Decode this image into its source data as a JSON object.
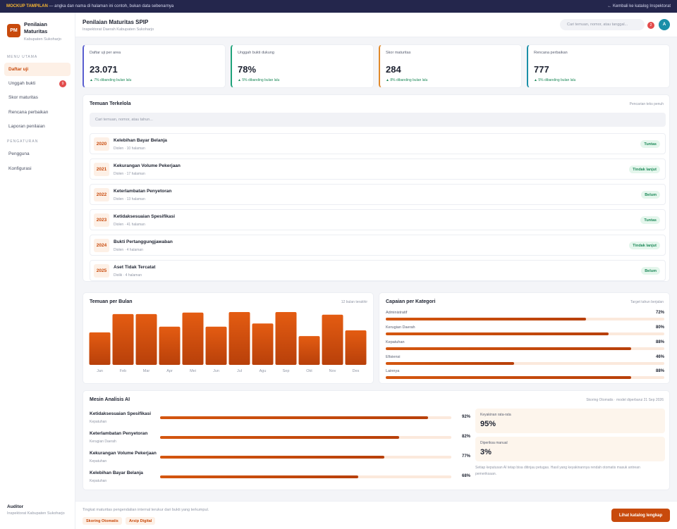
{
  "topbar": {
    "mock_label": "MOCKUP TAMPILAN",
    "notice": " — angka dan nama di halaman ini contoh, bukan data sebenarnya",
    "back_link": "← Kembali ke katalog Inspektorat"
  },
  "sidebar": {
    "logo": "PM",
    "title": "Penilaian Maturitas",
    "subtitle": "Kabupaten Sukoharjo",
    "section_main": "MENU UTAMA",
    "main_items": [
      {
        "label": "Daftar uji",
        "active": true
      },
      {
        "label": "Unggah bukti",
        "badge": "9"
      },
      {
        "label": "Skor maturitas"
      },
      {
        "label": "Rencana perbaikan"
      },
      {
        "label": "Laporan penilaian"
      }
    ],
    "section_settings": "PENGATURAN",
    "settings_items": [
      {
        "label": "Pengguna"
      },
      {
        "label": "Konfigurasi"
      }
    ],
    "user": {
      "name": "Auditor",
      "org": "Inspektorat Kabupaten Sukoharjo"
    }
  },
  "header": {
    "title": "Penilaian Maturitas SPIP",
    "subtitle": "Inspektorat Daerah Kabupaten Sukoharjo",
    "search_placeholder": "Cari temuan, nomor, atau tanggal...",
    "notif_count": "2",
    "avatar": "A"
  },
  "stats": [
    {
      "label": "Daftar uji per area",
      "value": "23.071",
      "delta": "▲ 7% dibanding bulan lalu",
      "color": "#5a5fd0"
    },
    {
      "label": "Unggah bukti dukung",
      "value": "78%",
      "delta": "▲ 5% dibanding bulan lalu",
      "color": "#1fa37a"
    },
    {
      "label": "Skor maturitas",
      "value": "284",
      "delta": "▲ 8% dibanding bulan lalu",
      "color": "#e0892a"
    },
    {
      "label": "Rencana perbaikan",
      "value": "777",
      "delta": "▲ 5% dibanding bulan lalu",
      "color": "#1b8fa8"
    }
  ],
  "findings": {
    "title": "Temuan Terkelola",
    "hint": "Pencarian teks penuh",
    "search_placeholder": "Cari temuan, nomor, atau tahun...",
    "items": [
      {
        "year": "2020",
        "title": "Kelebihan Bayar Belanja",
        "meta": "Diolen · 10 halaman",
        "status": "Tuntas"
      },
      {
        "year": "2021",
        "title": "Kekurangan Volume Pekerjaan",
        "meta": "Diolen · 17 halaman",
        "status": "Tindak lanjut"
      },
      {
        "year": "2022",
        "title": "Keterlambatan Penyetoran",
        "meta": "Diolen · 13 halaman",
        "status": "Belum"
      },
      {
        "year": "2023",
        "title": "Ketidaksesuaian Spesifikasi",
        "meta": "Diolen · 41 halaman",
        "status": "Tuntas"
      },
      {
        "year": "2024",
        "title": "Bukti Pertanggungjawaban",
        "meta": "Diolen · 4 halaman",
        "status": "Tindak lanjut"
      },
      {
        "year": "2025",
        "title": "Aset Tidak Tercatat",
        "meta": "Diolik · 4 halaman",
        "status": "Belum"
      }
    ]
  },
  "monthly": {
    "title": "Temuan per Bulan",
    "hint": "12 bulan terakhir"
  },
  "chart_data": {
    "type": "bar",
    "categories": [
      "Jan",
      "Feb",
      "Mar",
      "Apr",
      "Mei",
      "Jun",
      "Jul",
      "Agu",
      "Sep",
      "Okt",
      "Nov",
      "Des"
    ],
    "values": [
      62,
      97,
      97,
      73,
      100,
      73,
      101,
      79,
      101,
      55,
      96,
      66
    ],
    "ylim": [
      0,
      105
    ],
    "colors": [
      "#e45c12",
      "#b8400a"
    ]
  },
  "categories": {
    "title": "Capaian per Kategori",
    "hint": "Target tahun berjalan",
    "items": [
      {
        "label": "Administratif",
        "pct": "72%",
        "value": 72
      },
      {
        "label": "Kerugian Daerah",
        "pct": "80%",
        "value": 80
      },
      {
        "label": "Kepatuhan",
        "pct": "88%",
        "value": 88
      },
      {
        "label": "Efisiensi",
        "pct": "46%",
        "value": 46
      },
      {
        "label": "Lainnya",
        "pct": "88%",
        "value": 88
      }
    ]
  },
  "ai": {
    "title": "Mesin Analisis AI",
    "hint": "Skoring Otomatis · model diperbarui 21 Sep 2026",
    "items": [
      {
        "title": "Ketidaksesuaian Spesifikasi",
        "category": "Kepatuhan",
        "pct": "92%",
        "value": 92
      },
      {
        "title": "Keterlambatan Penyetoran",
        "category": "Kerugian Daerah",
        "pct": "82%",
        "value": 82
      },
      {
        "title": "Kekurangan Volume Pekerjaan",
        "category": "Kepatuhan",
        "pct": "77%",
        "value": 77
      },
      {
        "title": "Kelebihan Bayar Belanja",
        "category": "Kepatuhan",
        "pct": "68%",
        "value": 68
      }
    ],
    "confidence_label": "Keyakinan rata-rata",
    "confidence_value": "95%",
    "manual_label": "Diperiksa manual",
    "manual_value": "3%",
    "note": "Setiap keputusan AI tetap bisa ditinjau petugas. Hasil yang keyakinannya rendah otomatis masuk antrean pemeriksaan."
  },
  "footer": {
    "text": "Tingkat maturitas pengendalian internal terukur dari bukti yang terkumpul.",
    "tags": [
      "Skoring Otomatis",
      "Arsip Digital"
    ],
    "cta": "Lihat katalog lengkap"
  }
}
